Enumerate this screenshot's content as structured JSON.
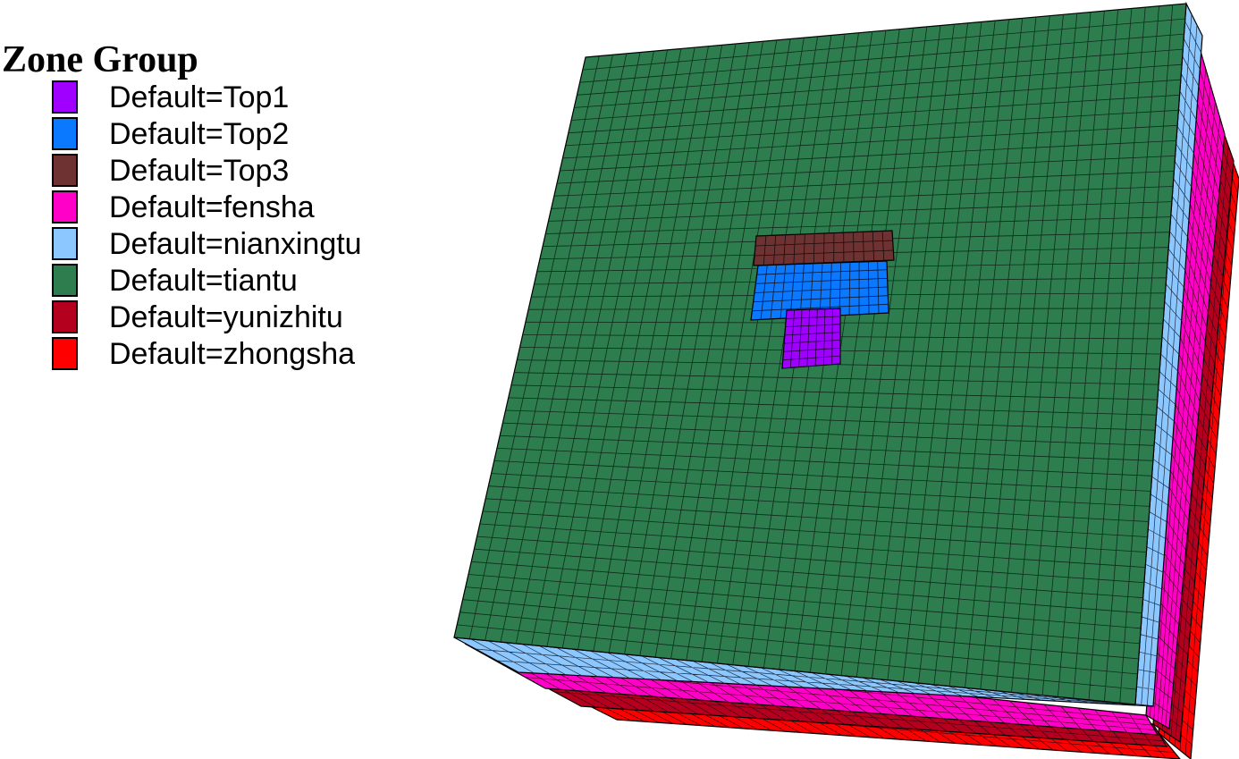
{
  "legend": {
    "title": "Zone Group",
    "items": [
      {
        "label": "Default=Top1",
        "color": "#a000ff"
      },
      {
        "label": "Default=Top2",
        "color": "#0a78ff"
      },
      {
        "label": "Default=Top3",
        "color": "#6e3232"
      },
      {
        "label": "Default=fensha",
        "color": "#ff00c8"
      },
      {
        "label": "Default=nianxingtu",
        "color": "#8cc8ff"
      },
      {
        "label": "Default=tiantu",
        "color": "#2e7d4f"
      },
      {
        "label": "Default=yunizhitu",
        "color": "#b4001e"
      },
      {
        "label": "Default=zhongsha",
        "color": "#ff0000"
      }
    ]
  },
  "model": {
    "top_face_group": "tiantu",
    "center_blocks": [
      "Top3",
      "Top2",
      "Top1"
    ],
    "side_layers": [
      "nianxingtu",
      "fensha",
      "yunizhitu",
      "zhongsha"
    ]
  }
}
